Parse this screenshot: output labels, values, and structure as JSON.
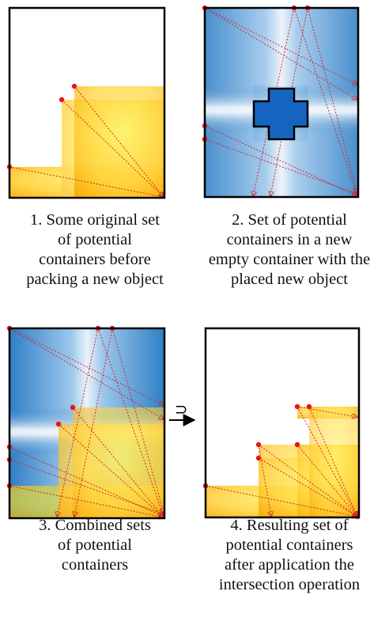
{
  "panels": [
    {
      "id": "panel-1",
      "caption": [
        "1. Some original set",
        "of potential",
        "containers before",
        "packing a new object"
      ]
    },
    {
      "id": "panel-2",
      "caption": [
        "2. Set of potential",
        "containers in a new",
        "empty container with the",
        "placed new object"
      ]
    },
    {
      "id": "panel-3",
      "caption": [
        "3. Combined sets",
        "of potential",
        "containers"
      ]
    },
    {
      "id": "panel-4",
      "caption": [
        "4. Resulting set of",
        "potential containers",
        "after application the",
        "intersection operation"
      ]
    }
  ],
  "operator_symbol": "⊃",
  "colors": {
    "frame": "#000000",
    "yellow_light": "#ffeb6b",
    "yellow_dark": "#f5b800",
    "blue_dark": "#1f6fb8",
    "blue_light": "#ffffff",
    "placed_object": "#1565c0",
    "corner_point": "#e8141c",
    "diagonal_line": "#d0282c"
  }
}
